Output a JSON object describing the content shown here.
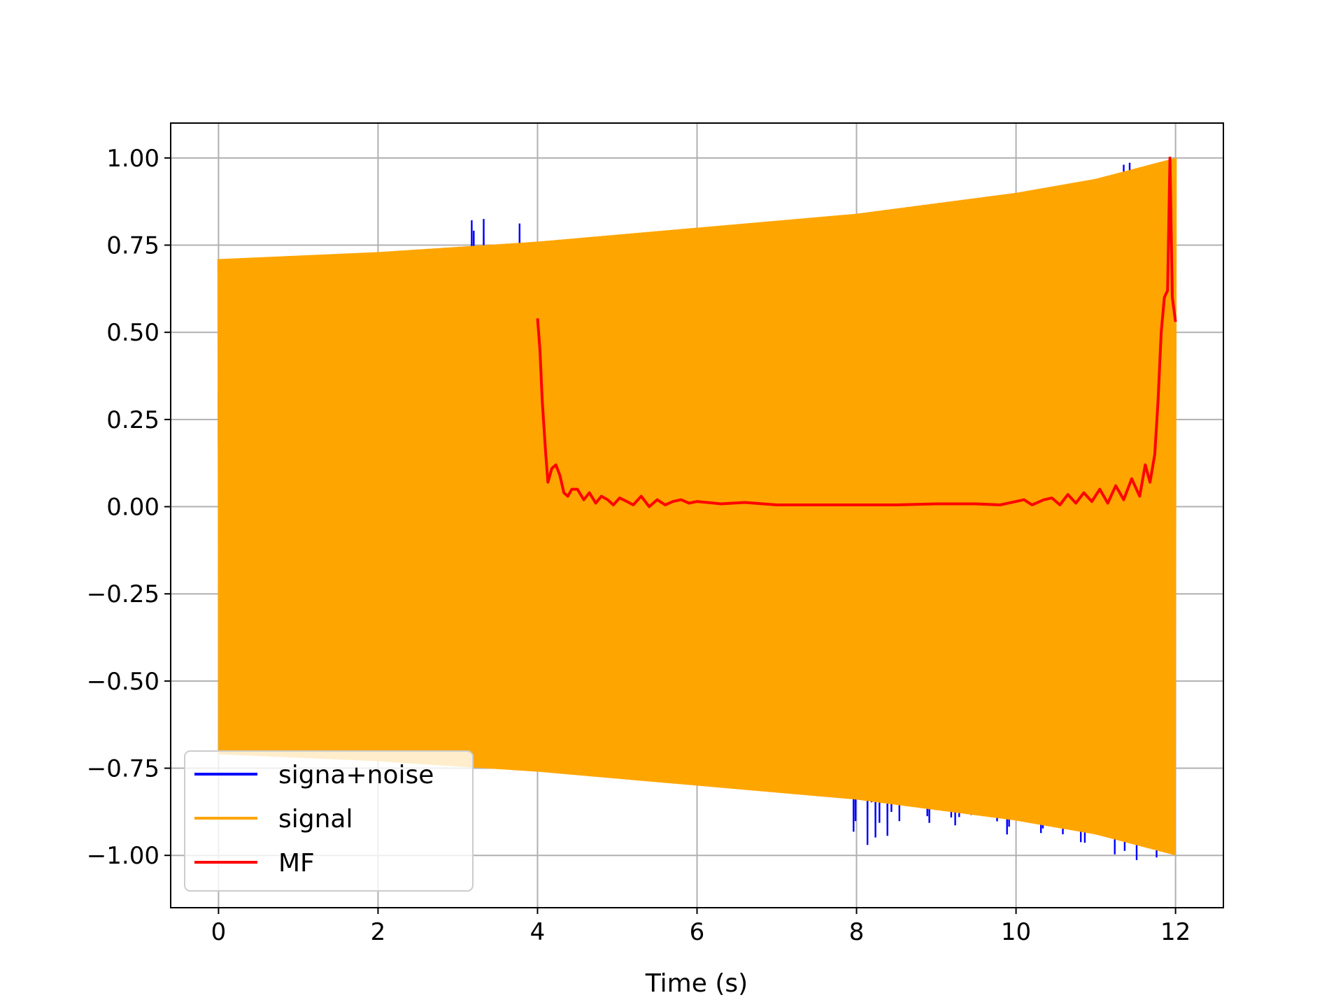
{
  "chart_data": {
    "type": "line",
    "title": "",
    "xlabel": "Time (s)",
    "ylabel": "",
    "xlim": [
      -0.6,
      12.6
    ],
    "ylim": [
      -1.15,
      1.1
    ],
    "grid": true,
    "legend_placement": "lower-left",
    "x_ticks": [
      0,
      2,
      4,
      6,
      8,
      10,
      12
    ],
    "x_tick_labels": [
      "0",
      "2",
      "4",
      "6",
      "8",
      "10",
      "12"
    ],
    "y_ticks": [
      1.0,
      0.75,
      0.5,
      0.25,
      0.0,
      -0.25,
      -0.5,
      -0.75,
      -1.0
    ],
    "y_tick_labels": [
      "1.00",
      "0.75",
      "0.50",
      "0.25",
      "0.00",
      "−0.25",
      "−0.50",
      "−0.75",
      "−1.00"
    ],
    "series": [
      {
        "name": "signa+noise",
        "color": "#0000ff",
        "style": "dense oscillation",
        "envelope": {
          "x": [
            0,
            1,
            2,
            3,
            3.25,
            3.5,
            3.73,
            4,
            5,
            6,
            7,
            7.9,
            7.98,
            9,
            10,
            11,
            11.45,
            12
          ],
          "upper": [
            0.6,
            0.6,
            0.62,
            0.7,
            0.88,
            0.72,
            0.88,
            0.72,
            0.72,
            0.75,
            0.78,
            0.82,
            0.86,
            0.88,
            0.9,
            0.94,
            1.0,
            0.92
          ],
          "lower": [
            -0.45,
            -0.55,
            -0.6,
            -0.65,
            -0.72,
            -0.7,
            -0.74,
            -0.72,
            -0.72,
            -0.76,
            -0.8,
            -0.85,
            -1.0,
            -0.92,
            -0.95,
            -0.97,
            -1.04,
            -0.98
          ]
        }
      },
      {
        "name": "signal",
        "color": "#ffa500",
        "style": "dense oscillation",
        "envelope": {
          "x": [
            0,
            2,
            4,
            6,
            8,
            10,
            11,
            12
          ],
          "upper": [
            0.71,
            0.73,
            0.76,
            0.8,
            0.84,
            0.9,
            0.94,
            1.0
          ],
          "lower": [
            -0.71,
            -0.73,
            -0.76,
            -0.8,
            -0.84,
            -0.9,
            -0.94,
            -1.0
          ]
        }
      },
      {
        "name": "MF",
        "color": "#ff0000",
        "x": [
          4.0,
          4.03,
          4.06,
          4.1,
          4.13,
          4.18,
          4.23,
          4.28,
          4.33,
          4.38,
          4.43,
          4.5,
          4.58,
          4.65,
          4.73,
          4.8,
          4.88,
          4.95,
          5.03,
          5.12,
          5.2,
          5.3,
          5.4,
          5.5,
          5.6,
          5.7,
          5.8,
          5.9,
          6.0,
          6.3,
          6.6,
          7.0,
          7.5,
          8.0,
          8.5,
          9.0,
          9.5,
          9.8,
          10.0,
          10.1,
          10.2,
          10.35,
          10.45,
          10.55,
          10.65,
          10.75,
          10.85,
          10.95,
          11.05,
          11.15,
          11.25,
          11.35,
          11.45,
          11.55,
          11.62,
          11.68,
          11.74,
          11.78,
          11.82,
          11.86,
          11.9,
          11.93,
          11.96,
          12.0
        ],
        "y": [
          0.54,
          0.45,
          0.3,
          0.16,
          0.07,
          0.11,
          0.12,
          0.09,
          0.04,
          0.03,
          0.05,
          0.05,
          0.02,
          0.04,
          0.01,
          0.03,
          0.02,
          0.005,
          0.025,
          0.015,
          0.005,
          0.03,
          0.0,
          0.02,
          0.005,
          0.015,
          0.02,
          0.01,
          0.015,
          0.008,
          0.012,
          0.005,
          0.005,
          0.005,
          0.005,
          0.008,
          0.008,
          0.005,
          0.015,
          0.02,
          0.005,
          0.02,
          0.025,
          0.005,
          0.035,
          0.01,
          0.04,
          0.015,
          0.05,
          0.01,
          0.06,
          0.02,
          0.08,
          0.03,
          0.12,
          0.07,
          0.15,
          0.3,
          0.5,
          0.6,
          0.62,
          1.0,
          0.6,
          0.53
        ]
      }
    ]
  }
}
